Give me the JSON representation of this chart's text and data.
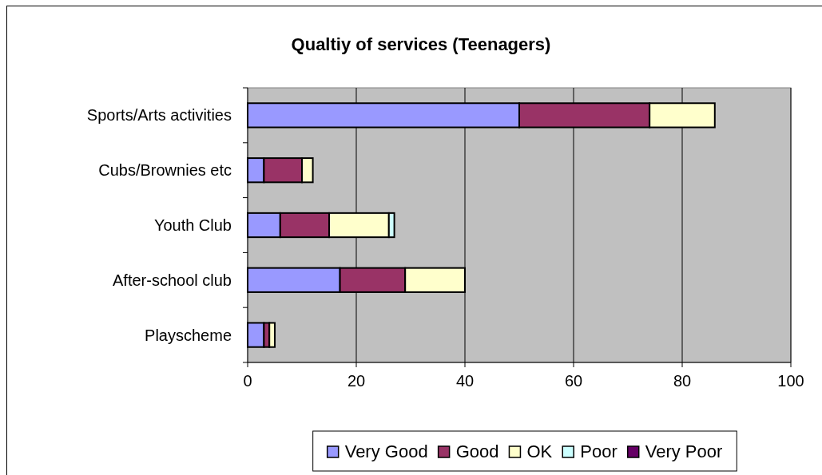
{
  "chart_data": {
    "type": "bar",
    "orientation": "horizontal",
    "stacked": true,
    "title": "Qualtiy of services (Teenagers)",
    "categories": [
      "Sports/Arts activities",
      "Cubs/Brownies etc",
      "Youth Club",
      "After-school club",
      "Playscheme"
    ],
    "series": [
      {
        "name": "Very Good",
        "color": "#9999ff",
        "values": [
          50,
          3,
          6,
          17,
          3
        ]
      },
      {
        "name": "Good",
        "color": "#993366",
        "values": [
          24,
          7,
          9,
          12,
          1
        ]
      },
      {
        "name": "OK",
        "color": "#ffffcc",
        "values": [
          12,
          2,
          11,
          11,
          1
        ]
      },
      {
        "name": "Poor",
        "color": "#ccffff",
        "values": [
          0,
          0,
          1,
          0,
          0
        ]
      },
      {
        "name": "Very Poor",
        "color": "#660066",
        "values": [
          0,
          0,
          0,
          0,
          0
        ]
      }
    ],
    "xlim": [
      0,
      100
    ],
    "xticks": [
      0,
      20,
      40,
      60,
      80,
      100
    ],
    "grid": "x",
    "legend": "bottom"
  }
}
